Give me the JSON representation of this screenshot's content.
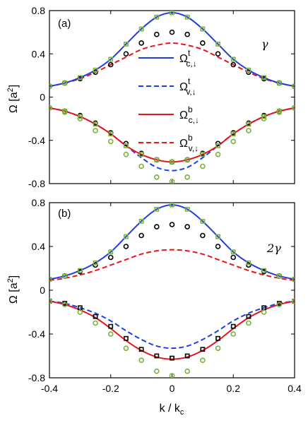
{
  "figure": {
    "xlabel": {
      "main": "k / k",
      "sub": "c"
    },
    "ylabel": {
      "main": "Ω [a",
      "sup": "2",
      "close": "]"
    }
  },
  "colors": {
    "blue": "#1f3fe0",
    "red": "#e8141b",
    "black": "#000000",
    "green": "#79b33a"
  },
  "chart_data": [
    {
      "type": "line",
      "panel": "(a)",
      "param": "γ",
      "xlim": [
        -0.4,
        0.4
      ],
      "ylim": [
        -0.8,
        0.8
      ],
      "x_ticks": [
        -0.4,
        -0.2,
        0,
        0.2,
        0.4
      ],
      "x_tick_labels": [],
      "y_ticks": [
        -0.8,
        -0.4,
        0,
        0.4,
        0.8
      ],
      "y_tick_labels": [
        "-0.8",
        "-0.4",
        "0",
        "0.4",
        "0.8"
      ],
      "legend": [
        {
          "base": "Ω",
          "sup": "t",
          "sub": "c,↓",
          "style": "solid",
          "color": "#1f3fe0"
        },
        {
          "base": "Ω",
          "sup": "t",
          "sub": "v,↓",
          "style": "dashed",
          "color": "#1f3fe0"
        },
        {
          "base": "Ω",
          "sup": "b",
          "sub": "c,↓",
          "style": "solid",
          "color": "#e8141b"
        },
        {
          "base": "Ω",
          "sup": "b",
          "sub": "v,↓",
          "style": "dashed",
          "color": "#e8141b"
        }
      ],
      "series": [
        {
          "style": "solid",
          "color": "#1f3fe0",
          "x": [
            -0.4,
            -0.35,
            -0.3,
            -0.25,
            -0.2,
            -0.15,
            -0.1,
            -0.05,
            0,
            0.05,
            0.1,
            0.15,
            0.2,
            0.25,
            0.3,
            0.35,
            0.4
          ],
          "y": [
            0.1,
            0.13,
            0.18,
            0.25,
            0.35,
            0.49,
            0.63,
            0.74,
            0.78,
            0.74,
            0.63,
            0.49,
            0.35,
            0.25,
            0.18,
            0.13,
            0.1
          ]
        },
        {
          "style": "dashed",
          "color": "#1f3fe0",
          "x": [
            -0.4,
            -0.35,
            -0.3,
            -0.25,
            -0.2,
            -0.15,
            -0.1,
            -0.05,
            0,
            0.05,
            0.1,
            0.15,
            0.2,
            0.25,
            0.3,
            0.35,
            0.4
          ],
          "y": [
            -0.1,
            -0.13,
            -0.18,
            -0.25,
            -0.34,
            -0.45,
            -0.56,
            -0.65,
            -0.68,
            -0.65,
            -0.56,
            -0.45,
            -0.34,
            -0.25,
            -0.18,
            -0.13,
            -0.1
          ]
        },
        {
          "style": "solid",
          "color": "#e8141b",
          "x": [
            -0.4,
            -0.35,
            -0.3,
            -0.25,
            -0.2,
            -0.15,
            -0.1,
            -0.05,
            0,
            0.05,
            0.1,
            0.15,
            0.2,
            0.25,
            0.3,
            0.35,
            0.4
          ],
          "y": [
            -0.1,
            -0.13,
            -0.18,
            -0.25,
            -0.34,
            -0.45,
            -0.53,
            -0.58,
            -0.6,
            -0.58,
            -0.53,
            -0.45,
            -0.34,
            -0.25,
            -0.18,
            -0.13,
            -0.1
          ]
        },
        {
          "style": "dashed",
          "color": "#e8141b",
          "x": [
            -0.4,
            -0.35,
            -0.3,
            -0.25,
            -0.2,
            -0.15,
            -0.1,
            -0.05,
            0,
            0.05,
            0.1,
            0.15,
            0.2,
            0.25,
            0.3,
            0.35,
            0.4
          ],
          "y": [
            0.1,
            0.13,
            0.17,
            0.23,
            0.3,
            0.37,
            0.44,
            0.48,
            0.5,
            0.48,
            0.44,
            0.37,
            0.3,
            0.23,
            0.17,
            0.13,
            0.1
          ]
        },
        {
          "style": "markers",
          "marker": "circle",
          "color": "#000000",
          "x": [
            -0.4,
            -0.35,
            -0.3,
            -0.25,
            -0.2,
            -0.15,
            -0.1,
            -0.05,
            0,
            0.05,
            0.1,
            0.15,
            0.2,
            0.25,
            0.3,
            0.35,
            0.4
          ],
          "y": [
            0.1,
            0.13,
            0.17,
            0.23,
            0.3,
            0.4,
            0.5,
            0.58,
            0.6,
            0.58,
            0.5,
            0.4,
            0.3,
            0.23,
            0.17,
            0.13,
            0.1
          ]
        },
        {
          "style": "markers",
          "marker": "circle",
          "color": "#000000",
          "x": [
            -0.4,
            -0.35,
            -0.3,
            -0.25,
            -0.2,
            -0.15,
            -0.1,
            -0.05,
            0,
            0.05,
            0.1,
            0.15,
            0.2,
            0.25,
            0.3,
            0.35,
            0.4
          ],
          "y": [
            -0.1,
            -0.13,
            -0.17,
            -0.24,
            -0.33,
            -0.43,
            -0.52,
            -0.58,
            -0.6,
            -0.58,
            -0.52,
            -0.43,
            -0.33,
            -0.24,
            -0.17,
            -0.13,
            -0.1
          ]
        },
        {
          "style": "markers",
          "marker": "square",
          "color": "#79b33a",
          "x": [
            -0.4,
            -0.35,
            -0.3,
            -0.25,
            -0.2,
            -0.15,
            -0.1,
            -0.05,
            0,
            0.05,
            0.1,
            0.15,
            0.2,
            0.25,
            0.3,
            0.35,
            0.4
          ],
          "y": [
            0.1,
            0.13,
            0.18,
            0.25,
            0.35,
            0.49,
            0.63,
            0.74,
            0.78,
            0.74,
            0.63,
            0.49,
            0.35,
            0.25,
            0.18,
            0.13,
            0.1
          ]
        },
        {
          "style": "markers",
          "marker": "square",
          "color": "#79b33a",
          "x": [
            -0.4,
            -0.35,
            -0.3,
            -0.25,
            -0.2,
            -0.15,
            -0.1,
            -0.05,
            0,
            0.05,
            0.1,
            0.15,
            0.2,
            0.25,
            0.3,
            0.35,
            0.4
          ],
          "y": [
            -0.1,
            -0.13,
            -0.18,
            -0.25,
            -0.34,
            -0.45,
            -0.53,
            -0.58,
            -0.6,
            -0.58,
            -0.53,
            -0.45,
            -0.34,
            -0.25,
            -0.18,
            -0.13,
            -0.1
          ]
        },
        {
          "style": "markers",
          "marker": "circle",
          "color": "#79b33a",
          "x": [
            -0.4,
            -0.35,
            -0.3,
            -0.25,
            -0.2,
            -0.15,
            -0.1,
            -0.05,
            0,
            0.05,
            0.1,
            0.15,
            0.2,
            0.25,
            0.3,
            0.35,
            0.4
          ],
          "y": [
            -0.1,
            -0.14,
            -0.2,
            -0.31,
            -0.41,
            -0.53,
            -0.64,
            -0.74,
            -0.78,
            -0.74,
            -0.64,
            -0.53,
            -0.41,
            -0.31,
            -0.2,
            -0.14,
            -0.1
          ]
        }
      ]
    },
    {
      "type": "line",
      "panel": "(b)",
      "param": "2γ",
      "xlim": [
        -0.4,
        0.4
      ],
      "ylim": [
        -0.8,
        0.8
      ],
      "x_ticks": [
        -0.4,
        -0.2,
        0,
        0.2,
        0.4
      ],
      "x_tick_labels": [
        "-0.4",
        "-0.2",
        "0",
        "0.2",
        "0.4"
      ],
      "y_ticks": [
        -0.8,
        -0.4,
        0,
        0.4,
        0.8
      ],
      "y_tick_labels": [
        "-0.8",
        "-0.4",
        "0",
        "0.4",
        "0.8"
      ],
      "series": [
        {
          "style": "solid",
          "color": "#1f3fe0",
          "x": [
            -0.4,
            -0.35,
            -0.3,
            -0.25,
            -0.2,
            -0.15,
            -0.1,
            -0.05,
            0,
            0.05,
            0.1,
            0.15,
            0.2,
            0.25,
            0.3,
            0.35,
            0.4
          ],
          "y": [
            0.1,
            0.13,
            0.18,
            0.25,
            0.35,
            0.49,
            0.63,
            0.74,
            0.78,
            0.74,
            0.63,
            0.49,
            0.35,
            0.25,
            0.18,
            0.13,
            0.1
          ]
        },
        {
          "style": "dashed",
          "color": "#1f3fe0",
          "x": [
            -0.4,
            -0.35,
            -0.3,
            -0.25,
            -0.2,
            -0.15,
            -0.1,
            -0.05,
            0,
            0.05,
            0.1,
            0.15,
            0.2,
            0.25,
            0.3,
            0.35,
            0.4
          ],
          "y": [
            -0.1,
            -0.12,
            -0.16,
            -0.21,
            -0.28,
            -0.37,
            -0.45,
            -0.51,
            -0.53,
            -0.51,
            -0.45,
            -0.37,
            -0.28,
            -0.21,
            -0.16,
            -0.12,
            -0.1
          ]
        },
        {
          "style": "solid",
          "color": "#e8141b",
          "x": [
            -0.4,
            -0.35,
            -0.3,
            -0.25,
            -0.2,
            -0.15,
            -0.1,
            -0.05,
            0,
            0.05,
            0.1,
            0.15,
            0.2,
            0.25,
            0.3,
            0.35,
            0.4
          ],
          "y": [
            -0.1,
            -0.13,
            -0.18,
            -0.25,
            -0.35,
            -0.46,
            -0.55,
            -0.61,
            -0.63,
            -0.61,
            -0.55,
            -0.46,
            -0.35,
            -0.25,
            -0.18,
            -0.13,
            -0.1
          ]
        },
        {
          "style": "dashed",
          "color": "#e8141b",
          "x": [
            -0.4,
            -0.35,
            -0.3,
            -0.25,
            -0.2,
            -0.15,
            -0.1,
            -0.05,
            0,
            0.05,
            0.1,
            0.15,
            0.2,
            0.25,
            0.3,
            0.35,
            0.4
          ],
          "y": [
            0.09,
            0.11,
            0.14,
            0.18,
            0.23,
            0.28,
            0.33,
            0.36,
            0.37,
            0.36,
            0.33,
            0.28,
            0.23,
            0.18,
            0.14,
            0.11,
            0.09
          ]
        },
        {
          "style": "markers",
          "marker": "circle",
          "color": "#000000",
          "x": [
            -0.4,
            -0.35,
            -0.3,
            -0.25,
            -0.2,
            -0.15,
            -0.1,
            -0.05,
            0,
            0.05,
            0.1,
            0.15,
            0.2,
            0.25,
            0.3,
            0.35,
            0.4
          ],
          "y": [
            0.1,
            0.13,
            0.17,
            0.23,
            0.3,
            0.4,
            0.5,
            0.58,
            0.6,
            0.58,
            0.5,
            0.4,
            0.3,
            0.23,
            0.17,
            0.13,
            0.1
          ]
        },
        {
          "style": "markers",
          "marker": "square",
          "color": "#000000",
          "x": [
            -0.4,
            -0.35,
            -0.3,
            -0.25,
            -0.2,
            -0.15,
            -0.1,
            -0.05,
            0,
            0.05,
            0.1,
            0.15,
            0.2,
            0.25,
            0.3,
            0.35,
            0.4
          ],
          "y": [
            -0.1,
            -0.12,
            -0.16,
            -0.24,
            -0.33,
            -0.44,
            -0.54,
            -0.6,
            -0.62,
            -0.6,
            -0.54,
            -0.44,
            -0.33,
            -0.24,
            -0.16,
            -0.12,
            -0.1
          ]
        },
        {
          "style": "markers",
          "marker": "square",
          "color": "#79b33a",
          "x": [
            -0.4,
            -0.35,
            -0.3,
            -0.25,
            -0.2,
            -0.15,
            -0.1,
            -0.05,
            0,
            0.05,
            0.1,
            0.15,
            0.2,
            0.25,
            0.3,
            0.35,
            0.4
          ],
          "y": [
            0.1,
            0.13,
            0.18,
            0.25,
            0.35,
            0.49,
            0.63,
            0.74,
            0.78,
            0.74,
            0.63,
            0.49,
            0.35,
            0.25,
            0.18,
            0.13,
            0.1
          ]
        },
        {
          "style": "markers",
          "marker": "circle",
          "color": "#79b33a",
          "x": [
            -0.4,
            -0.35,
            -0.3,
            -0.25,
            -0.2,
            -0.15,
            -0.1,
            -0.05,
            0,
            0.05,
            0.1,
            0.15,
            0.2,
            0.25,
            0.3,
            0.35,
            0.4
          ],
          "y": [
            -0.1,
            -0.13,
            -0.2,
            -0.3,
            -0.4,
            -0.53,
            -0.64,
            -0.74,
            -0.78,
            -0.74,
            -0.64,
            -0.53,
            -0.4,
            -0.3,
            -0.2,
            -0.13,
            -0.1
          ]
        }
      ]
    }
  ]
}
